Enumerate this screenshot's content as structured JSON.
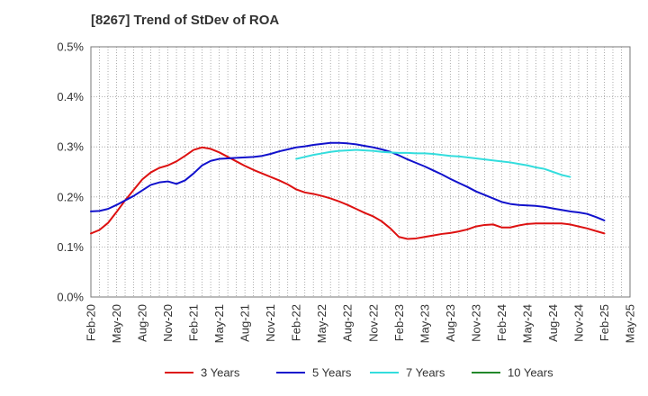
{
  "chart_data": {
    "type": "line",
    "title": "[8267]  Trend of StDev of ROA",
    "xlabel": "",
    "ylabel": "",
    "x_ticks": [
      "Feb-20",
      "May-20",
      "Aug-20",
      "Nov-20",
      "Feb-21",
      "May-21",
      "Aug-21",
      "Nov-21",
      "Feb-22",
      "May-22",
      "Aug-22",
      "Nov-22",
      "Feb-23",
      "May-23",
      "Aug-23",
      "Nov-23",
      "Feb-24",
      "May-24",
      "Aug-24",
      "Nov-24",
      "Feb-25",
      "May-25"
    ],
    "y_ticks": [
      "0.0%",
      "0.1%",
      "0.2%",
      "0.3%",
      "0.4%",
      "0.5%"
    ],
    "ylim": [
      0,
      0.5
    ],
    "y_unit": "%",
    "grid": true,
    "legend_position": "bottom",
    "series": [
      {
        "name": "3 Years",
        "color": "#dd1111",
        "start": "Feb-20",
        "values": [
          0.127,
          0.134,
          0.148,
          0.17,
          0.193,
          0.214,
          0.235,
          0.249,
          0.258,
          0.263,
          0.271,
          0.282,
          0.294,
          0.299,
          0.296,
          0.289,
          0.28,
          0.271,
          0.262,
          0.254,
          0.247,
          0.24,
          0.233,
          0.225,
          0.215,
          0.209,
          0.206,
          0.202,
          0.197,
          0.191,
          0.184,
          0.176,
          0.168,
          0.161,
          0.151,
          0.137,
          0.12,
          0.116,
          0.117,
          0.12,
          0.123,
          0.126,
          0.128,
          0.131,
          0.135,
          0.141,
          0.144,
          0.145,
          0.139,
          0.139,
          0.143,
          0.146,
          0.147,
          0.147,
          0.147,
          0.147,
          0.145,
          0.141,
          0.137,
          0.132,
          0.127
        ]
      },
      {
        "name": "5 Years",
        "color": "#1111cc",
        "start": "Feb-20",
        "values": [
          0.171,
          0.172,
          0.176,
          0.184,
          0.193,
          0.202,
          0.213,
          0.224,
          0.229,
          0.231,
          0.226,
          0.233,
          0.247,
          0.263,
          0.272,
          0.276,
          0.277,
          0.278,
          0.279,
          0.28,
          0.282,
          0.286,
          0.291,
          0.295,
          0.299,
          0.301,
          0.304,
          0.306,
          0.308,
          0.308,
          0.307,
          0.305,
          0.302,
          0.299,
          0.295,
          0.29,
          0.283,
          0.275,
          0.268,
          0.261,
          0.253,
          0.245,
          0.236,
          0.228,
          0.22,
          0.211,
          0.204,
          0.197,
          0.19,
          0.186,
          0.184,
          0.183,
          0.182,
          0.18,
          0.177,
          0.174,
          0.171,
          0.169,
          0.166,
          0.16,
          0.153
        ]
      },
      {
        "name": "7 Years",
        "color": "#33dddd",
        "start": "Feb-22",
        "values": [
          0.276,
          0.28,
          0.284,
          0.287,
          0.29,
          0.292,
          0.293,
          0.294,
          0.293,
          0.292,
          0.29,
          0.289,
          0.288,
          0.288,
          0.287,
          0.287,
          0.286,
          0.284,
          0.282,
          0.281,
          0.279,
          0.277,
          0.275,
          0.273,
          0.271,
          0.269,
          0.266,
          0.263,
          0.259,
          0.256,
          0.25,
          0.244,
          0.24
        ]
      },
      {
        "name": "10 Years",
        "color": "#22882a",
        "start": "Feb-20",
        "values": []
      }
    ]
  }
}
